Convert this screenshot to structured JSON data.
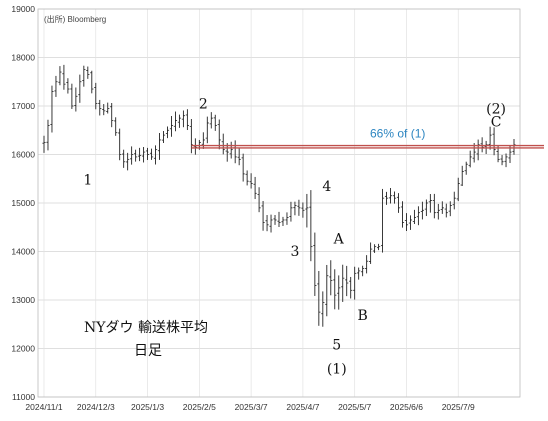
{
  "chart_data": {
    "type": "bar",
    "subtype": "ohlc-high-low",
    "source_note": "(出所) Bloomberg",
    "title_line1": "NYダウ 輸送株平均",
    "title_line2": "日足",
    "y_ticks": [
      "11000",
      "12000",
      "13000",
      "14000",
      "15000",
      "16000",
      "17000",
      "18000",
      "19000"
    ],
    "ylim": [
      11000,
      19000
    ],
    "x_ticks": [
      "2024/11/1",
      "2024/12/3",
      "2025/1/3",
      "2025/2/5",
      "2025/3/7",
      "2025/4/7",
      "2025/5/7",
      "2025/6/6",
      "2025/7/9"
    ],
    "grid": true,
    "level_line": {
      "value": 16160,
      "label": "66% of (1)",
      "color": "#c0504d",
      "label_color": "#2e86c1"
    },
    "wave_labels": [
      {
        "text": "1",
        "x": 11,
        "y": 15380
      },
      {
        "text": "2",
        "x": 40,
        "y": 16950
      },
      {
        "text": "3",
        "x": 63,
        "y": 13910
      },
      {
        "text": "4",
        "x": 71,
        "y": 15250
      },
      {
        "text": "A",
        "x": 74,
        "y": 14160
      },
      {
        "text": "B",
        "x": 80,
        "y": 12590
      },
      {
        "text": "5",
        "x": 73.5,
        "y": 11980
      },
      {
        "text": "(1)",
        "x": 73.5,
        "y": 11480
      },
      {
        "text": "(2)",
        "x": 113.5,
        "y": 16850
      },
      {
        "text": "C",
        "x": 113.5,
        "y": 16580
      }
    ],
    "anchors": [
      [
        0,
        16250
      ],
      [
        1,
        16600
      ],
      [
        2,
        17300
      ],
      [
        3,
        17500
      ],
      [
        4,
        17700
      ],
      [
        5,
        17450
      ],
      [
        6,
        17350
      ],
      [
        7,
        17000
      ],
      [
        8,
        17200
      ],
      [
        9,
        17500
      ],
      [
        10,
        17750
      ],
      [
        11,
        17650
      ],
      [
        12,
        17350
      ],
      [
        13,
        17050
      ],
      [
        14,
        16950
      ],
      [
        15,
        16900
      ],
      [
        16,
        16950
      ],
      [
        17,
        16700
      ],
      [
        18,
        16450
      ],
      [
        19,
        16000
      ],
      [
        20,
        15850
      ],
      [
        21,
        15900
      ],
      [
        22,
        16000
      ],
      [
        23,
        15950
      ],
      [
        24,
        15980
      ],
      [
        25,
        16050
      ],
      [
        26,
        16000
      ],
      [
        27,
        15950
      ],
      [
        28,
        16100
      ],
      [
        29,
        16300
      ],
      [
        30,
        16400
      ],
      [
        31,
        16500
      ],
      [
        32,
        16600
      ],
      [
        33,
        16700
      ],
      [
        34,
        16750
      ],
      [
        35,
        16800
      ],
      [
        36,
        16600
      ],
      [
        37,
        16200
      ],
      [
        38,
        16150
      ],
      [
        39,
        16250
      ],
      [
        40,
        16300
      ],
      [
        41,
        16650
      ],
      [
        42,
        16750
      ],
      [
        43,
        16600
      ],
      [
        44,
        16300
      ],
      [
        45,
        16100
      ],
      [
        46,
        16050
      ],
      [
        47,
        16100
      ],
      [
        48,
        15950
      ],
      [
        49,
        15900
      ],
      [
        50,
        15600
      ],
      [
        51,
        15450
      ],
      [
        52,
        15400
      ],
      [
        53,
        15200
      ],
      [
        54,
        14900
      ],
      [
        55,
        14600
      ],
      [
        56,
        14550
      ],
      [
        57,
        14650
      ],
      [
        58,
        14650
      ],
      [
        59,
        14600
      ],
      [
        60,
        14650
      ],
      [
        61,
        14700
      ],
      [
        62,
        14900
      ],
      [
        63,
        14950
      ],
      [
        64,
        14900
      ],
      [
        65,
        14850
      ],
      [
        66,
        14900
      ],
      [
        67,
        14100
      ],
      [
        68,
        13300
      ],
      [
        69,
        12750
      ],
      [
        70,
        12950
      ],
      [
        71,
        13500
      ],
      [
        72,
        13400
      ],
      [
        73,
        13100
      ],
      [
        74,
        13250
      ],
      [
        75,
        13450
      ],
      [
        76,
        13350
      ],
      [
        77,
        13200
      ],
      [
        78,
        13550
      ],
      [
        79,
        13600
      ],
      [
        80,
        13650
      ],
      [
        81,
        13800
      ],
      [
        82,
        14050
      ],
      [
        83,
        14100
      ],
      [
        84,
        14100
      ],
      [
        85,
        15100
      ],
      [
        86,
        15100
      ],
      [
        87,
        15150
      ],
      [
        88,
        15100
      ],
      [
        89,
        14900
      ],
      [
        90,
        14600
      ],
      [
        91,
        14550
      ],
      [
        92,
        14650
      ],
      [
        93,
        14700
      ],
      [
        94,
        14800
      ],
      [
        95,
        14850
      ],
      [
        96,
        15000
      ],
      [
        97,
        15050
      ],
      [
        98,
        14800
      ],
      [
        99,
        14850
      ],
      [
        100,
        14900
      ],
      [
        101,
        14800
      ],
      [
        102,
        14950
      ],
      [
        103,
        15100
      ],
      [
        104,
        15400
      ],
      [
        105,
        15650
      ],
      [
        106,
        15800
      ],
      [
        107,
        15950
      ],
      [
        108,
        16050
      ],
      [
        109,
        16200
      ],
      [
        110,
        16150
      ],
      [
        111,
        16200
      ],
      [
        112,
        16400
      ],
      [
        113,
        16100
      ],
      [
        114,
        15900
      ],
      [
        115,
        15850
      ],
      [
        116,
        15950
      ],
      [
        117,
        16050
      ],
      [
        118,
        16200
      ]
    ],
    "n_bars": 119,
    "x_tick_index": [
      0,
      13,
      26,
      39,
      52,
      65,
      78,
      91,
      104
    ]
  }
}
